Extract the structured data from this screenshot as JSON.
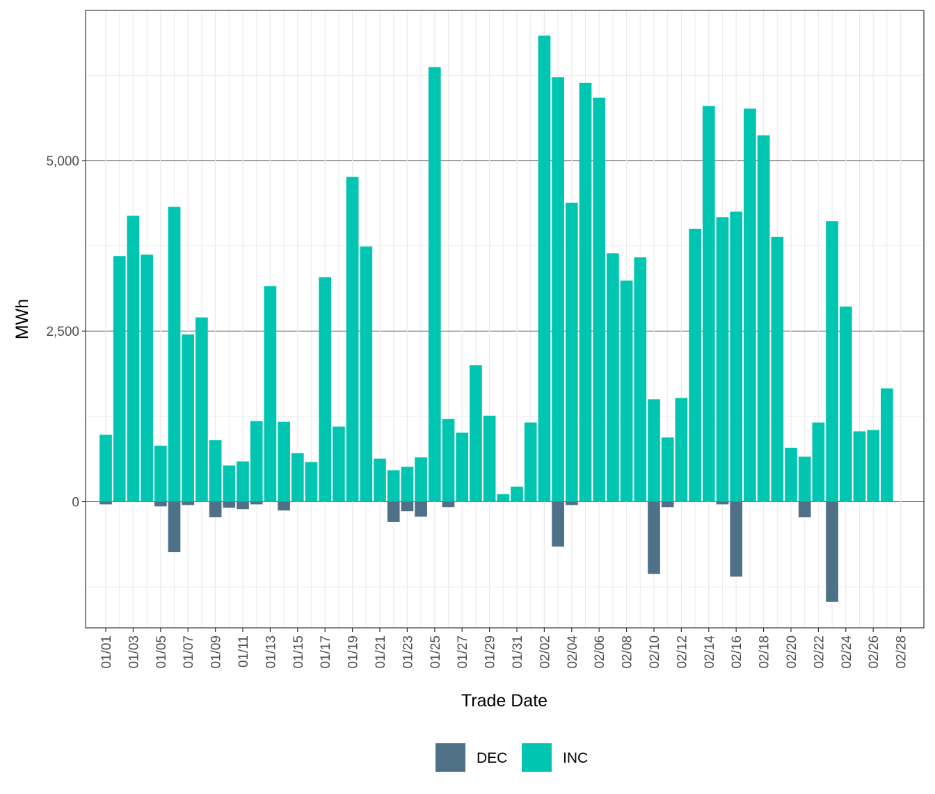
{
  "colors": {
    "DEC": "#4e7187",
    "INC": "#00c5b0"
  },
  "chart_data": {
    "type": "bar",
    "stacked": true,
    "xlabel": "Trade Date",
    "ylabel": "MWh",
    "ylim": [
      -1850,
      7200
    ],
    "y_ticks": [
      0,
      2500,
      5000
    ],
    "y_tick_labels": [
      "0",
      "2,500",
      "5,000"
    ],
    "x": [
      "01/01",
      "01/02",
      "01/03",
      "01/04",
      "01/05",
      "01/06",
      "01/07",
      "01/08",
      "01/09",
      "01/10",
      "01/11",
      "01/12",
      "01/13",
      "01/14",
      "01/15",
      "01/16",
      "01/17",
      "01/18",
      "01/19",
      "01/20",
      "01/21",
      "01/22",
      "01/23",
      "01/24",
      "01/25",
      "01/26",
      "01/27",
      "01/28",
      "01/29",
      "01/30",
      "01/31",
      "02/01",
      "02/02",
      "02/03",
      "02/04",
      "02/05",
      "02/06",
      "02/07",
      "02/08",
      "02/09",
      "02/10",
      "02/11",
      "02/12",
      "02/13",
      "02/14",
      "02/15",
      "02/16",
      "02/17",
      "02/18",
      "02/19",
      "02/20",
      "02/21",
      "02/22",
      "02/23",
      "02/24",
      "02/25",
      "02/26",
      "02/27",
      "02/28"
    ],
    "x_tick_labels": [
      "01/01",
      "01/03",
      "01/05",
      "01/07",
      "01/09",
      "01/11",
      "01/13",
      "01/15",
      "01/17",
      "01/19",
      "01/21",
      "01/23",
      "01/25",
      "01/27",
      "01/29",
      "01/31",
      "02/02",
      "02/04",
      "02/06",
      "02/08",
      "02/10",
      "02/12",
      "02/14",
      "02/16",
      "02/18",
      "02/20",
      "02/22",
      "02/24",
      "02/26",
      "02/28"
    ],
    "series": [
      {
        "name": "DEC",
        "values": [
          -40,
          0,
          0,
          0,
          -70,
          -740,
          -50,
          0,
          -230,
          -90,
          -110,
          -40,
          0,
          -130,
          0,
          0,
          0,
          0,
          0,
          0,
          0,
          -300,
          -140,
          -220,
          0,
          -80,
          0,
          0,
          0,
          0,
          0,
          0,
          0,
          -660,
          -50,
          0,
          0,
          0,
          0,
          0,
          -1060,
          -80,
          0,
          0,
          0,
          -40,
          -1100,
          0,
          0,
          0,
          0,
          -230,
          0,
          -1470,
          0,
          0,
          0,
          0,
          0
        ]
      },
      {
        "name": "INC",
        "values": [
          980,
          3600,
          4190,
          3620,
          820,
          4320,
          2450,
          2700,
          900,
          530,
          590,
          1180,
          3160,
          1170,
          710,
          580,
          3290,
          1100,
          4760,
          3740,
          630,
          460,
          510,
          650,
          6370,
          1210,
          1010,
          2000,
          1260,
          110,
          220,
          1160,
          6830,
          6220,
          4380,
          6140,
          5920,
          3640,
          3240,
          3580,
          1500,
          940,
          1520,
          4000,
          5800,
          4170,
          4250,
          5760,
          5370,
          3880,
          790,
          660,
          1160,
          4110,
          2860,
          1030,
          1050,
          1660,
          0
        ]
      }
    ],
    "legend": {
      "position": "bottom",
      "entries": [
        "DEC",
        "INC"
      ]
    },
    "grid": true
  }
}
